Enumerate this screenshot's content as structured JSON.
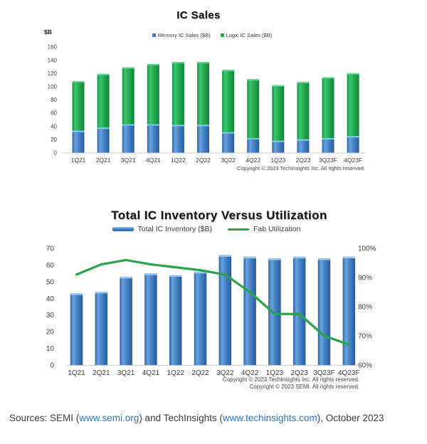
{
  "chart_data": [
    {
      "type": "bar",
      "stacked": true,
      "title": "IC Sales",
      "ylabel": "$B",
      "xlabel": "",
      "categories": [
        "1Q21",
        "2Q21",
        "3Q21",
        "4Q21",
        "1Q22",
        "2Q22",
        "3Q22",
        "4Q22",
        "1Q23",
        "2Q23",
        "3Q23F",
        "4Q23F"
      ],
      "series": [
        {
          "name": "Memory IC Sales ($B)",
          "color": "#3E7CC2",
          "values": [
            33,
            38,
            43,
            43,
            42,
            42,
            31,
            22,
            18,
            20,
            22,
            25
          ]
        },
        {
          "name": "Logic IC Sales ($B)",
          "color": "#21A94C",
          "values": [
            75,
            81,
            86,
            91,
            95,
            95,
            94,
            89,
            84,
            87,
            92,
            95
          ]
        }
      ],
      "ylim": [
        0,
        160
      ],
      "yticks": [
        0,
        20,
        40,
        60,
        80,
        100,
        120,
        140,
        160
      ],
      "grid": false,
      "legend_position": "top",
      "copyright": "Copyright © 2023 TechInsights Inc.  All rights reserved."
    },
    {
      "type": "bar+line",
      "title": "Total IC Inventory Versus Utilization",
      "categories": [
        "1Q21",
        "2Q21",
        "3Q21",
        "4Q21",
        "1Q22",
        "2Q22",
        "3Q22",
        "4Q22",
        "1Q23",
        "2Q23",
        "3Q23F",
        "4Q23F"
      ],
      "series": [
        {
          "name": "Total IC Inventory ($B)",
          "kind": "bar",
          "axis": "left",
          "color": "#3E7CC2",
          "values": [
            43,
            44,
            53,
            55,
            54,
            56,
            66,
            65,
            64,
            65,
            64,
            65
          ]
        },
        {
          "name": "Fab Utilization",
          "kind": "line",
          "axis": "right",
          "color": "#2AA44C",
          "values": [
            91,
            94.5,
            96,
            94.5,
            93.5,
            92.5,
            91,
            85,
            77.5,
            77.5,
            70,
            67
          ]
        }
      ],
      "ylim_left": [
        0,
        70
      ],
      "yticks_left": [
        0,
        10,
        20,
        30,
        40,
        50,
        60,
        70
      ],
      "ylim_right": [
        60,
        100
      ],
      "yticks_right": [
        "60%",
        "70%",
        "80%",
        "90%",
        "100%"
      ],
      "grid": false,
      "legend_position": "top",
      "copyright_lines": [
        "Copyright © 2023 TechInsights Inc.  All rights reserved.",
        "Copyright © 2023 SEMI.  All rights reserved."
      ]
    }
  ],
  "source_note": {
    "prefix": "Sources: SEMI (",
    "link1": "www.semi.org",
    "middle": ") and TechInsights (",
    "link2": "www.techinsights.com",
    "suffix": "), October 2023",
    "link_color": "#2E75B6"
  }
}
